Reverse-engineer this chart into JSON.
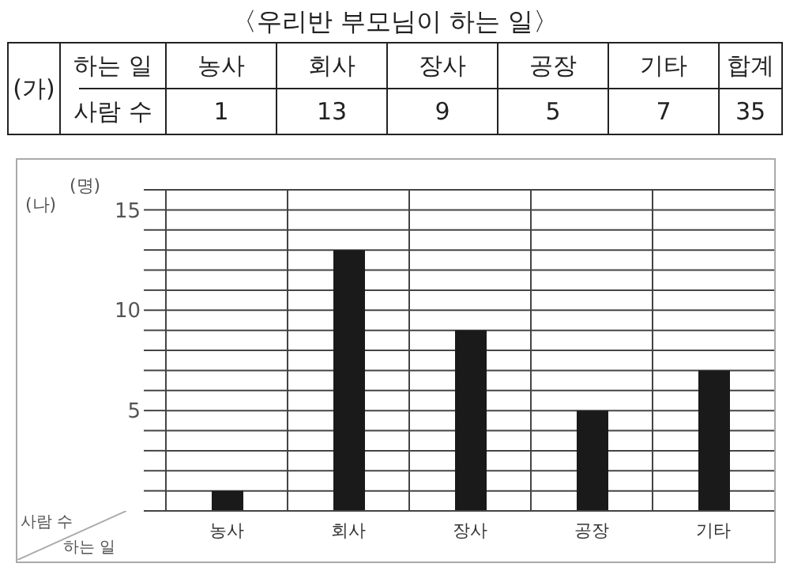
{
  "chart_data": {
    "type": "bar",
    "title": "〈우리반 부모님이 하는 일〉",
    "categories": [
      "농사",
      "회사",
      "장사",
      "공장",
      "기타"
    ],
    "values": [
      1,
      13,
      9,
      5,
      7
    ],
    "color": "#1a1a1a",
    "xlabel": "하는 일",
    "ylabel": "(명)",
    "ylim": [
      0,
      16
    ],
    "yticks": [
      {
        "value": 0,
        "label": null
      },
      {
        "value": 1,
        "label": null
      },
      {
        "value": 2,
        "label": null
      },
      {
        "value": 3,
        "label": null
      },
      {
        "value": 4,
        "label": null
      },
      5,
      {
        "value": 6,
        "label": null
      },
      {
        "value": 7,
        "label": null
      },
      {
        "value": 8,
        "label": null
      },
      {
        "value": 9,
        "label": null
      },
      10,
      {
        "value": 11,
        "label": null
      },
      {
        "value": 12,
        "label": null
      },
      {
        "value": 13,
        "label": null
      },
      {
        "value": 14,
        "label": null
      },
      15,
      {
        "value": 16,
        "label": null
      }
    ],
    "grid": true,
    "data_labels": true,
    "annotations": [
      "(가)",
      "하는 일",
      "사람 수",
      "합계",
      "35",
      "(나)",
      "사람 수"
    ]
  }
}
